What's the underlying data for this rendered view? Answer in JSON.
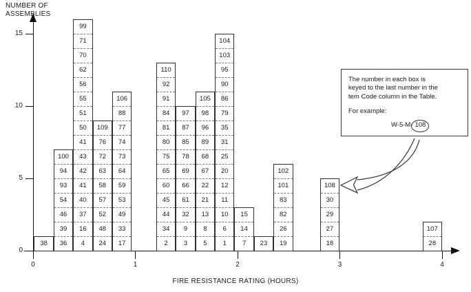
{
  "figure": {
    "y_axis_title_line1": "NUMBER OF",
    "y_axis_title_line2": "ASSEMBLIES",
    "x_axis_title": "FIRE RESISTANCE RATING (HOURS)"
  },
  "callout": {
    "lines": [
      "The number in each box is",
      "keyed to the last number in the",
      "tem Code column in the Table."
    ],
    "example_label": "For example:",
    "example_prefix": "W-5-M-",
    "example_circled": "108"
  },
  "chart_data": {
    "type": "bar",
    "title": "",
    "xlabel": "FIRE RESISTANCE RATING (HOURS)",
    "ylabel": "NUMBER OF ASSEMBLIES",
    "x_ticks": [
      0,
      1,
      2,
      3,
      4
    ],
    "y_ticks": [
      0,
      5,
      10,
      15
    ],
    "xlim": [
      0,
      4.45
    ],
    "ylim": [
      0,
      16.5
    ],
    "grid": false,
    "legend": false,
    "bar_width_hours": 0.191,
    "unit_per_box": 1,
    "bars": [
      {
        "x_start": 0.01,
        "height": 1,
        "boxes_bottom_to_top": [
          "38"
        ]
      },
      {
        "x_start": 0.201,
        "height": 7,
        "boxes_bottom_to_top": [
          "36",
          "39",
          "46",
          "54",
          "93",
          "94",
          "100"
        ]
      },
      {
        "x_start": 0.392,
        "height": 16,
        "boxes_bottom_to_top": [
          "4",
          "16",
          "37",
          "40",
          "41",
          "42",
          "43",
          "41",
          "50",
          "51",
          "55",
          "56",
          "62",
          "70",
          "71",
          "99"
        ]
      },
      {
        "x_start": 0.583,
        "height": 9,
        "boxes_bottom_to_top": [
          "24",
          "48",
          "52",
          "57",
          "58",
          "63",
          "72",
          "76",
          "109"
        ]
      },
      {
        "x_start": 0.774,
        "height": 11,
        "boxes_bottom_to_top": [
          "17",
          "33",
          "49",
          "53",
          "59",
          "64",
          "73",
          "74",
          "77",
          "88",
          "106"
        ]
      },
      {
        "x_start": 1.205,
        "height": 13,
        "boxes_bottom_to_top": [
          "2",
          "34",
          "44",
          "45",
          "60",
          "65",
          "75",
          "80",
          "81",
          "84",
          "91",
          "92",
          "110"
        ]
      },
      {
        "x_start": 1.396,
        "height": 10,
        "boxes_bottom_to_top": [
          "3",
          "9",
          "32",
          "61",
          "66",
          "69",
          "78",
          "85",
          "87",
          "97"
        ]
      },
      {
        "x_start": 1.587,
        "height": 11,
        "boxes_bottom_to_top": [
          "5",
          "8",
          "13",
          "21",
          "22",
          "67",
          "68",
          "89",
          "96",
          "98",
          "105"
        ]
      },
      {
        "x_start": 1.778,
        "height": 15,
        "boxes_bottom_to_top": [
          "1",
          "6",
          "10",
          "11",
          "12",
          "20",
          "25",
          "31",
          "35",
          "79",
          "86",
          "90",
          "95",
          "103",
          "104"
        ]
      },
      {
        "x_start": 1.969,
        "height": 3,
        "boxes_bottom_to_top": [
          "7",
          "14",
          "15"
        ]
      },
      {
        "x_start": 2.16,
        "height": 1,
        "boxes_bottom_to_top": [
          "23"
        ]
      },
      {
        "x_start": 2.351,
        "height": 6,
        "boxes_bottom_to_top": [
          "19",
          "26",
          "82",
          "83",
          "101",
          "102"
        ]
      },
      {
        "x_start": 2.806,
        "height": 5,
        "boxes_bottom_to_top": [
          "18",
          "27",
          "29",
          "30",
          "108"
        ]
      },
      {
        "x_start": 3.809,
        "height": 2,
        "boxes_bottom_to_top": [
          "28",
          "107"
        ]
      }
    ]
  }
}
